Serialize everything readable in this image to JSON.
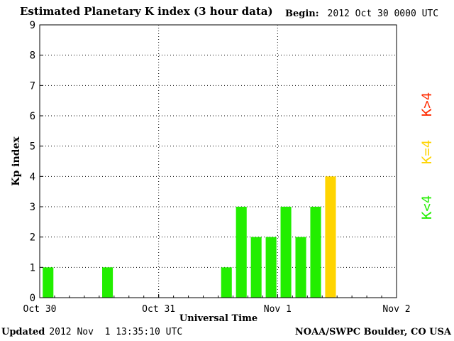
{
  "header": {
    "title": "Estimated Planetary K index (3 hour data)",
    "begin_label": "Begin:",
    "begin_value": "2012 Oct 30 0000 UTC"
  },
  "footer": {
    "updated_label": "Updated",
    "updated_value": "2012 Nov  1 13:35:10 UTC",
    "credit": "NOAA/SWPC Boulder, CO USA"
  },
  "legend": [
    {
      "label": "K>4",
      "color": "#ff2a00"
    },
    {
      "label": "K=4",
      "color": "#ffd400"
    },
    {
      "label": "K<4",
      "color": "#22ee00"
    }
  ],
  "chart_data": {
    "type": "bar",
    "title": "Estimated Planetary K index (3 hour data)",
    "xlabel": "Universal Time",
    "ylabel": "Kp index",
    "ylim": [
      0,
      9
    ],
    "yticks": [
      0,
      1,
      2,
      3,
      4,
      5,
      6,
      7,
      8,
      9
    ],
    "xlim_hours": [
      0,
      72
    ],
    "xticks": [
      {
        "hour": 0,
        "label": "Oct 30"
      },
      {
        "hour": 24,
        "label": "Oct 31"
      },
      {
        "hour": 48,
        "label": "Nov 1"
      },
      {
        "hour": 72,
        "label": "Nov 2"
      }
    ],
    "grid": true,
    "bar_interval_hours": 3,
    "colors": {
      "below4": "#22ee00",
      "equal4": "#ffd400",
      "above4": "#ff2a00"
    },
    "bars": [
      {
        "start_hour": 0,
        "kp": 1
      },
      {
        "start_hour": 12,
        "kp": 1
      },
      {
        "start_hour": 36,
        "kp": 1
      },
      {
        "start_hour": 39,
        "kp": 3
      },
      {
        "start_hour": 42,
        "kp": 2
      },
      {
        "start_hour": 45,
        "kp": 2
      },
      {
        "start_hour": 48,
        "kp": 3
      },
      {
        "start_hour": 51,
        "kp": 2
      },
      {
        "start_hour": 54,
        "kp": 3
      },
      {
        "start_hour": 57,
        "kp": 4
      }
    ]
  }
}
